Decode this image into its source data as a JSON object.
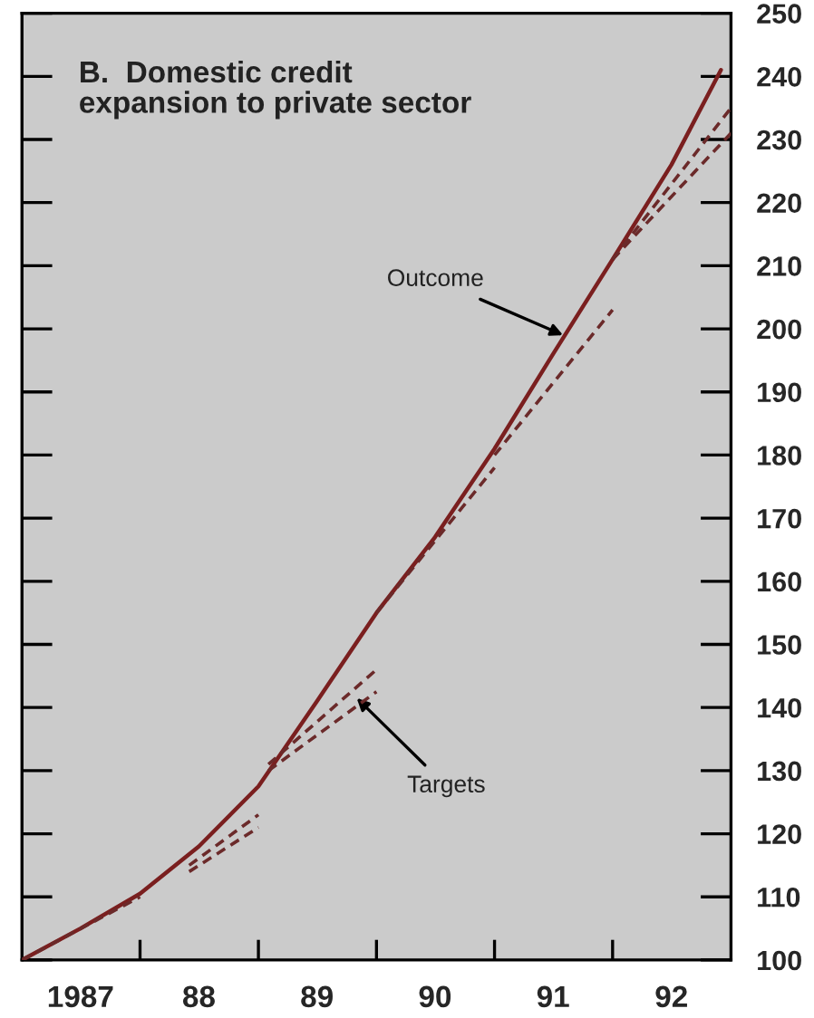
{
  "chart_data": {
    "type": "line",
    "title": "B.  Domestic credit\nexpansion to private sector",
    "xlim": [
      "1987-01",
      "1993-01"
    ],
    "xticks": [
      {
        "value": "1987-07",
        "label": "1987"
      },
      {
        "value": "1988-01",
        "label": null
      },
      {
        "value": "1988-07",
        "label": "88"
      },
      {
        "value": "1989-01",
        "label": null
      },
      {
        "value": "1989-07",
        "label": "89"
      },
      {
        "value": "1990-01",
        "label": null
      },
      {
        "value": "1990-07",
        "label": "90"
      },
      {
        "value": "1991-01",
        "label": null
      },
      {
        "value": "1991-07",
        "label": "91"
      },
      {
        "value": "1992-01",
        "label": null
      },
      {
        "value": "1992-07",
        "label": "92"
      }
    ],
    "ylim": [
      100,
      250
    ],
    "yticks": [
      100,
      110,
      120,
      130,
      140,
      150,
      160,
      170,
      180,
      190,
      200,
      210,
      220,
      230,
      240,
      250
    ],
    "legend": false,
    "series": [
      {
        "color": "#7a1f1f",
        "line_style": "solid",
        "x": [
          "1987-01",
          "1987-07",
          "1988-01",
          "1988-07",
          "1989-01",
          "1989-07",
          "1990-01",
          "1990-07",
          "1991-01",
          "1991-07",
          "1992-01",
          "1992-07",
          "1992-12"
        ],
        "values": [
          100,
          105,
          110.5,
          118,
          127.5,
          141,
          155,
          167,
          181,
          196,
          211,
          226,
          241
        ]
      },
      {
        "color": "#6b2a2a",
        "line_style": "dashed",
        "x": [
          "1987-01",
          "1988-01"
        ],
        "values": [
          100,
          110
        ]
      },
      {
        "color": "#6b2a2a",
        "line_style": "dashed",
        "x": [
          "1988-06",
          "1989-01"
        ],
        "values": [
          114,
          121
        ]
      },
      {
        "color": "#6b2a2a",
        "line_style": "dashed",
        "x": [
          "1988-06",
          "1989-01"
        ],
        "values": [
          115,
          123
        ]
      },
      {
        "color": "#6b2a2a",
        "line_style": "dashed",
        "x": [
          "1989-02",
          "1990-01"
        ],
        "values": [
          130,
          142.5
        ]
      },
      {
        "color": "#6b2a2a",
        "line_style": "dashed",
        "x": [
          "1989-02",
          "1990-01"
        ],
        "values": [
          131,
          146
        ]
      },
      {
        "color": "#6b2a2a",
        "line_style": "dashed",
        "x": [
          "1990-01",
          "1991-01"
        ],
        "values": [
          155,
          178
        ]
      },
      {
        "color": "#6b2a2a",
        "line_style": "dashed",
        "x": [
          "1991-01",
          "1992-01"
        ],
        "values": [
          180,
          203
        ]
      },
      {
        "color": "#6b2a2a",
        "line_style": "dashed",
        "x": [
          "1992-01",
          "1993-01"
        ],
        "values": [
          211,
          231
        ]
      },
      {
        "color": "#6b2a2a",
        "line_style": "dashed",
        "x": [
          "1992-01",
          "1993-01"
        ],
        "values": [
          211,
          235
        ]
      }
    ],
    "annotations": [
      {
        "text": "Outcome",
        "x": "1991-08",
        "y": 199
      },
      {
        "text": "Targets",
        "x": "1989-11",
        "y": 141.5
      }
    ]
  }
}
